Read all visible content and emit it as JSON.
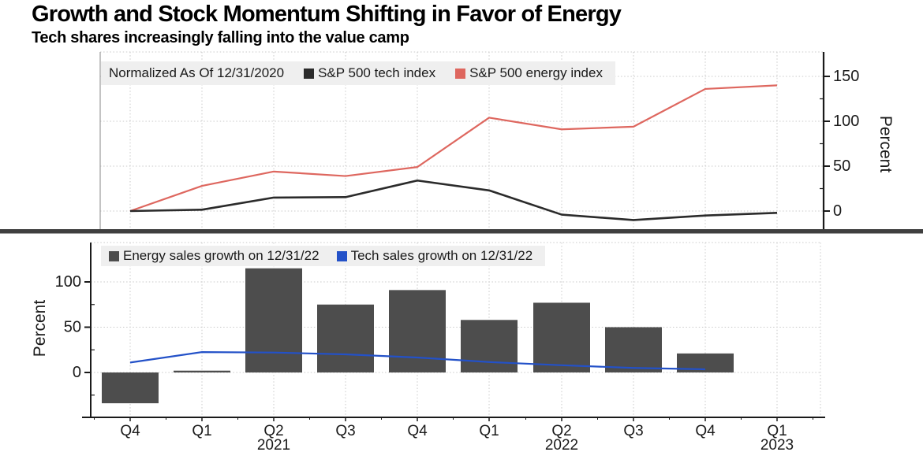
{
  "header": {
    "title": "Growth and Stock Momentum Shifting in Favor of Energy",
    "subtitle": "Tech shares increasingly falling into the value camp"
  },
  "colors": {
    "energy_index_line": "#de675f",
    "tech_index_line": "#2b2b2b",
    "energy_sales_bar": "#4d4d4d",
    "tech_sales_line": "#2351c8",
    "legend_bg": "#efefef",
    "grid": "#c9c9c9",
    "axis": "#1a1a1a",
    "separator": "#3f3f3f"
  },
  "chart_data": [
    {
      "type": "line",
      "title_note": "Normalized As Of 12/31/2020",
      "x": [
        "Q4 2020",
        "Q1 2021",
        "Q2 2021",
        "Q3 2021",
        "Q4 2021",
        "Q1 2022",
        "Q2 2022",
        "Q3 2022",
        "Q4 2022",
        "Q1 2023"
      ],
      "series": [
        {
          "name": "S&P 500 tech index",
          "color": "#2b2b2b",
          "values": [
            0,
            1.5,
            15,
            15.5,
            34,
            23,
            -4,
            -10,
            -5,
            -2
          ]
        },
        {
          "name": "S&P 500 energy index",
          "color": "#de675f",
          "values": [
            0,
            28,
            44,
            39,
            49,
            104,
            91,
            94,
            136,
            140
          ]
        }
      ],
      "ylabel": "Percent",
      "yticks": [
        0,
        50,
        100,
        150
      ],
      "ylim": [
        -22,
        177
      ],
      "y_axis_side": "right",
      "grid": true,
      "legend_position": "top-left"
    },
    {
      "type": "bar",
      "x": [
        "Q4 2020",
        "Q1 2021",
        "Q2 2021",
        "Q3 2021",
        "Q4 2021",
        "Q1 2022",
        "Q2 2022",
        "Q3 2022",
        "Q4 2022",
        "Q1 2023"
      ],
      "series": [
        {
          "name": "Energy sales growth on 12/31/22",
          "type": "bar",
          "color": "#4d4d4d",
          "values": [
            -34,
            2,
            115,
            75,
            91,
            58,
            77,
            50,
            21,
            null
          ]
        },
        {
          "name": "Tech sales growth on 12/31/22",
          "type": "line",
          "color": "#2351c8",
          "values": [
            11,
            22.5,
            22,
            20,
            16.5,
            11.5,
            8,
            5,
            3.5,
            null
          ]
        }
      ],
      "ylabel": "Percent",
      "yticks": [
        0,
        50,
        100
      ],
      "ylim": [
        -50,
        143
      ],
      "y_axis_side": "left",
      "grid": true,
      "legend_position": "top-left",
      "xtick_labels": [
        "Q4",
        "Q1",
        "Q2",
        "Q3",
        "Q4",
        "Q1",
        "Q2",
        "Q3",
        "Q4",
        "Q1"
      ],
      "year_labels": [
        {
          "text": "2021",
          "index": 2
        },
        {
          "text": "2022",
          "index": 6
        },
        {
          "text": "2023",
          "index": 9
        }
      ]
    }
  ]
}
